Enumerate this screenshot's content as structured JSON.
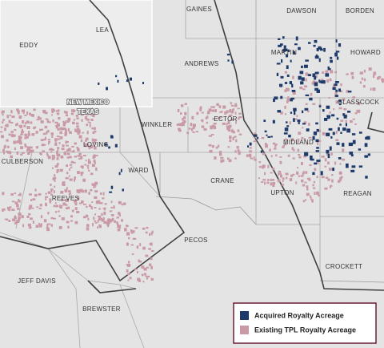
{
  "counties": [
    "GAINES",
    "DAWSON",
    "BORDEN",
    "LEA",
    "EDDY",
    "ANDREWS",
    "MARTIN",
    "HOWARD",
    "GLASSCOCK",
    "WINKLER",
    "ECTOR",
    "LOVING",
    "MIDLAND",
    "CULBERSON",
    "WARD",
    "CRANE",
    "UPTON",
    "REAGAN",
    "REEVES",
    "JEFF DAVIS",
    "PECOS",
    "CROCKETT",
    "BREWSTER"
  ],
  "state_labels": [
    "NEW MEXICO",
    "TEXAS"
  ],
  "legend": {
    "items": [
      {
        "label": "Acquired Royalty Acreage",
        "color": "#1d3a6a"
      },
      {
        "label": "Existing TPL Royalty Acreage",
        "color": "#c99aa6"
      }
    ]
  }
}
